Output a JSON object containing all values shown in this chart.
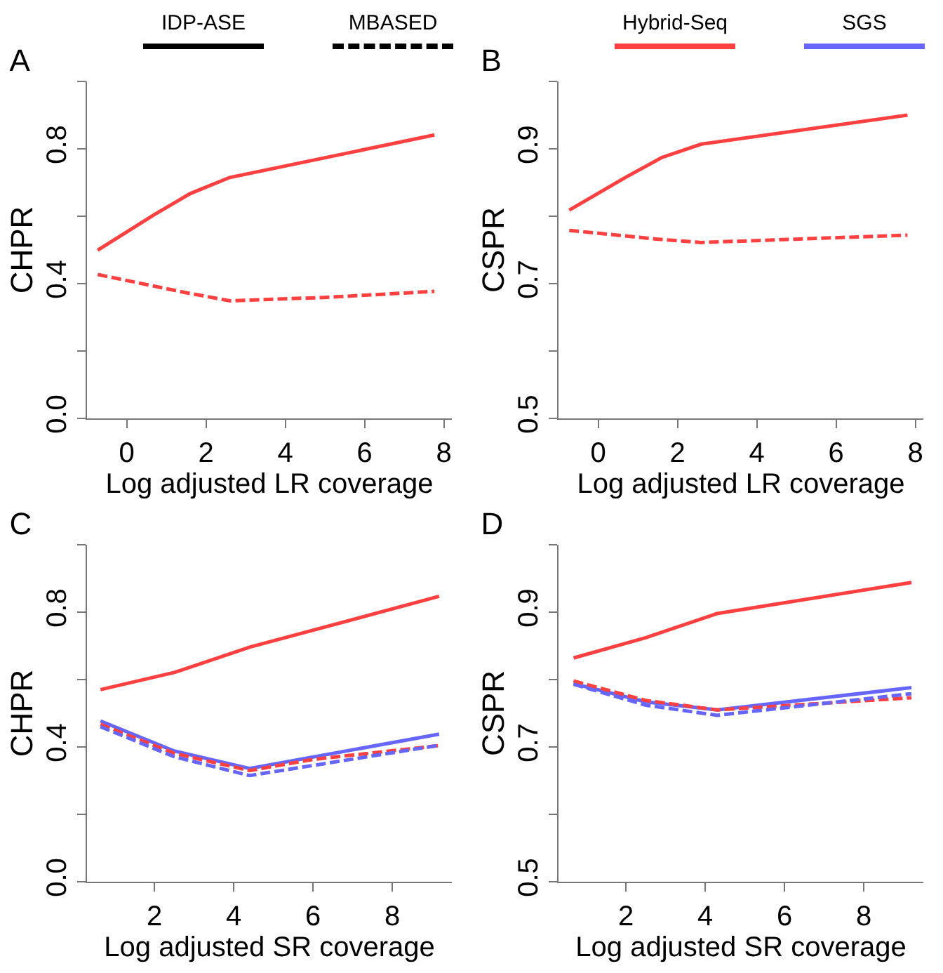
{
  "chart_data": [
    {
      "type": "line",
      "title": "A",
      "xlabel": "Log adjusted LR coverage",
      "ylabel": "CHPR",
      "annotations": [
        "IDP-ASE",
        "MBASED"
      ],
      "xlim": [
        -1.0,
        8.2
      ],
      "xticks": [
        0,
        2,
        4,
        6,
        8
      ],
      "ylim": [
        0,
        1
      ],
      "yticks": [
        {
          "value": 0,
          "label": "0.0"
        },
        {
          "value": 0.2,
          "label": null
        },
        0.4,
        {
          "value": 0.6,
          "label": null
        },
        0.8,
        {
          "value": 1,
          "label": null
        }
      ],
      "grid": false,
      "series": [
        {
          "color": "#ff4040",
          "line_style": "solid",
          "x": [
            -0.73,
            0.7,
            1.6,
            2.6,
            7.76
          ],
          "values": [
            0.499,
            0.605,
            0.667,
            0.715,
            0.841
          ]
        },
        {
          "color": "#ff4040",
          "line_style": "dashed",
          "x": [
            -0.73,
            1.5,
            2.6,
            5,
            7.76
          ],
          "values": [
            0.427,
            0.373,
            0.349,
            0.359,
            0.377
          ]
        }
      ]
    },
    {
      "type": "line",
      "title": "B",
      "xlabel": "Log adjusted LR coverage",
      "ylabel": "CSPR",
      "annotations": [
        "Hybrid-Seq",
        "SGS"
      ],
      "xlim": [
        -1.0,
        8.2
      ],
      "xticks": [
        0,
        2,
        4,
        6,
        8
      ],
      "ylim": [
        0.5,
        1
      ],
      "yticks": [
        0.5,
        {
          "value": 0.6,
          "label": null
        },
        0.7,
        {
          "value": 0.8,
          "label": null
        },
        0.9,
        {
          "value": 1,
          "label": null
        }
      ],
      "grid": false,
      "series": [
        {
          "color": "#ff4040",
          "line_style": "solid",
          "x": [
            -0.73,
            0.7,
            1.6,
            2.6,
            7.8
          ],
          "values": [
            0.809,
            0.858,
            0.887,
            0.907,
            0.95
          ]
        },
        {
          "color": "#ff4040",
          "line_style": "dashed",
          "x": [
            -0.73,
            1.5,
            2.6,
            5,
            7.8
          ],
          "values": [
            0.779,
            0.766,
            0.761,
            0.766,
            0.772
          ]
        }
      ]
    },
    {
      "type": "line",
      "title": "C",
      "xlabel": "Log adjusted SR coverage",
      "ylabel": "CHPR",
      "xlim": [
        0.3,
        9.5
      ],
      "xticks": [
        2,
        4,
        6,
        8
      ],
      "ylim": [
        0,
        1
      ],
      "yticks": [
        {
          "value": 0,
          "label": "0.0"
        },
        {
          "value": 0.2,
          "label": null
        },
        0.4,
        {
          "value": 0.6,
          "label": null
        },
        0.8,
        {
          "value": 1,
          "label": null
        }
      ],
      "grid": false,
      "series": [
        {
          "color": "#ff4040",
          "line_style": "solid",
          "x": [
            0.64,
            2.5,
            4.4,
            9.18
          ],
          "values": [
            0.57,
            0.621,
            0.696,
            0.847
          ]
        },
        {
          "color": "#6666ff",
          "line_style": "solid",
          "x": [
            0.64,
            2.5,
            4.4,
            9.18
          ],
          "values": [
            0.477,
            0.388,
            0.336,
            0.438
          ]
        },
        {
          "color": "#ff4040",
          "line_style": "dashed",
          "x": [
            0.64,
            2.5,
            4.4,
            6,
            9.18
          ],
          "values": [
            0.467,
            0.381,
            0.33,
            0.363,
            0.404
          ]
        },
        {
          "color": "#6666ff",
          "line_style": "dashed",
          "x": [
            0.64,
            2.5,
            4.4,
            9.18
          ],
          "values": [
            0.46,
            0.371,
            0.315,
            0.405
          ]
        }
      ]
    },
    {
      "type": "line",
      "title": "D",
      "xlabel": "Log adjusted SR coverage",
      "ylabel": "CSPR",
      "xlim": [
        0.3,
        9.5
      ],
      "xticks": [
        2,
        4,
        6,
        8
      ],
      "ylim": [
        0.5,
        1
      ],
      "yticks": [
        0.5,
        {
          "value": 0.6,
          "label": null
        },
        0.7,
        {
          "value": 0.8,
          "label": null
        },
        0.9,
        {
          "value": 1,
          "label": null
        }
      ],
      "grid": false,
      "series": [
        {
          "color": "#ff4040",
          "line_style": "solid",
          "x": [
            0.68,
            2.5,
            4.3,
            9.2
          ],
          "values": [
            0.832,
            0.862,
            0.898,
            0.944
          ]
        },
        {
          "color": "#6666ff",
          "line_style": "solid",
          "x": [
            0.68,
            2.5,
            4.3,
            9.2
          ],
          "values": [
            0.794,
            0.767,
            0.755,
            0.788
          ]
        },
        {
          "color": "#ff4040",
          "line_style": "dashed",
          "x": [
            0.68,
            2.5,
            4.3,
            9.2
          ],
          "values": [
            0.798,
            0.769,
            0.755,
            0.773
          ]
        },
        {
          "color": "#6666ff",
          "line_style": "dashed",
          "x": [
            0.68,
            2.5,
            4.3,
            9.2
          ],
          "values": [
            0.793,
            0.762,
            0.747,
            0.779
          ]
        }
      ]
    }
  ]
}
